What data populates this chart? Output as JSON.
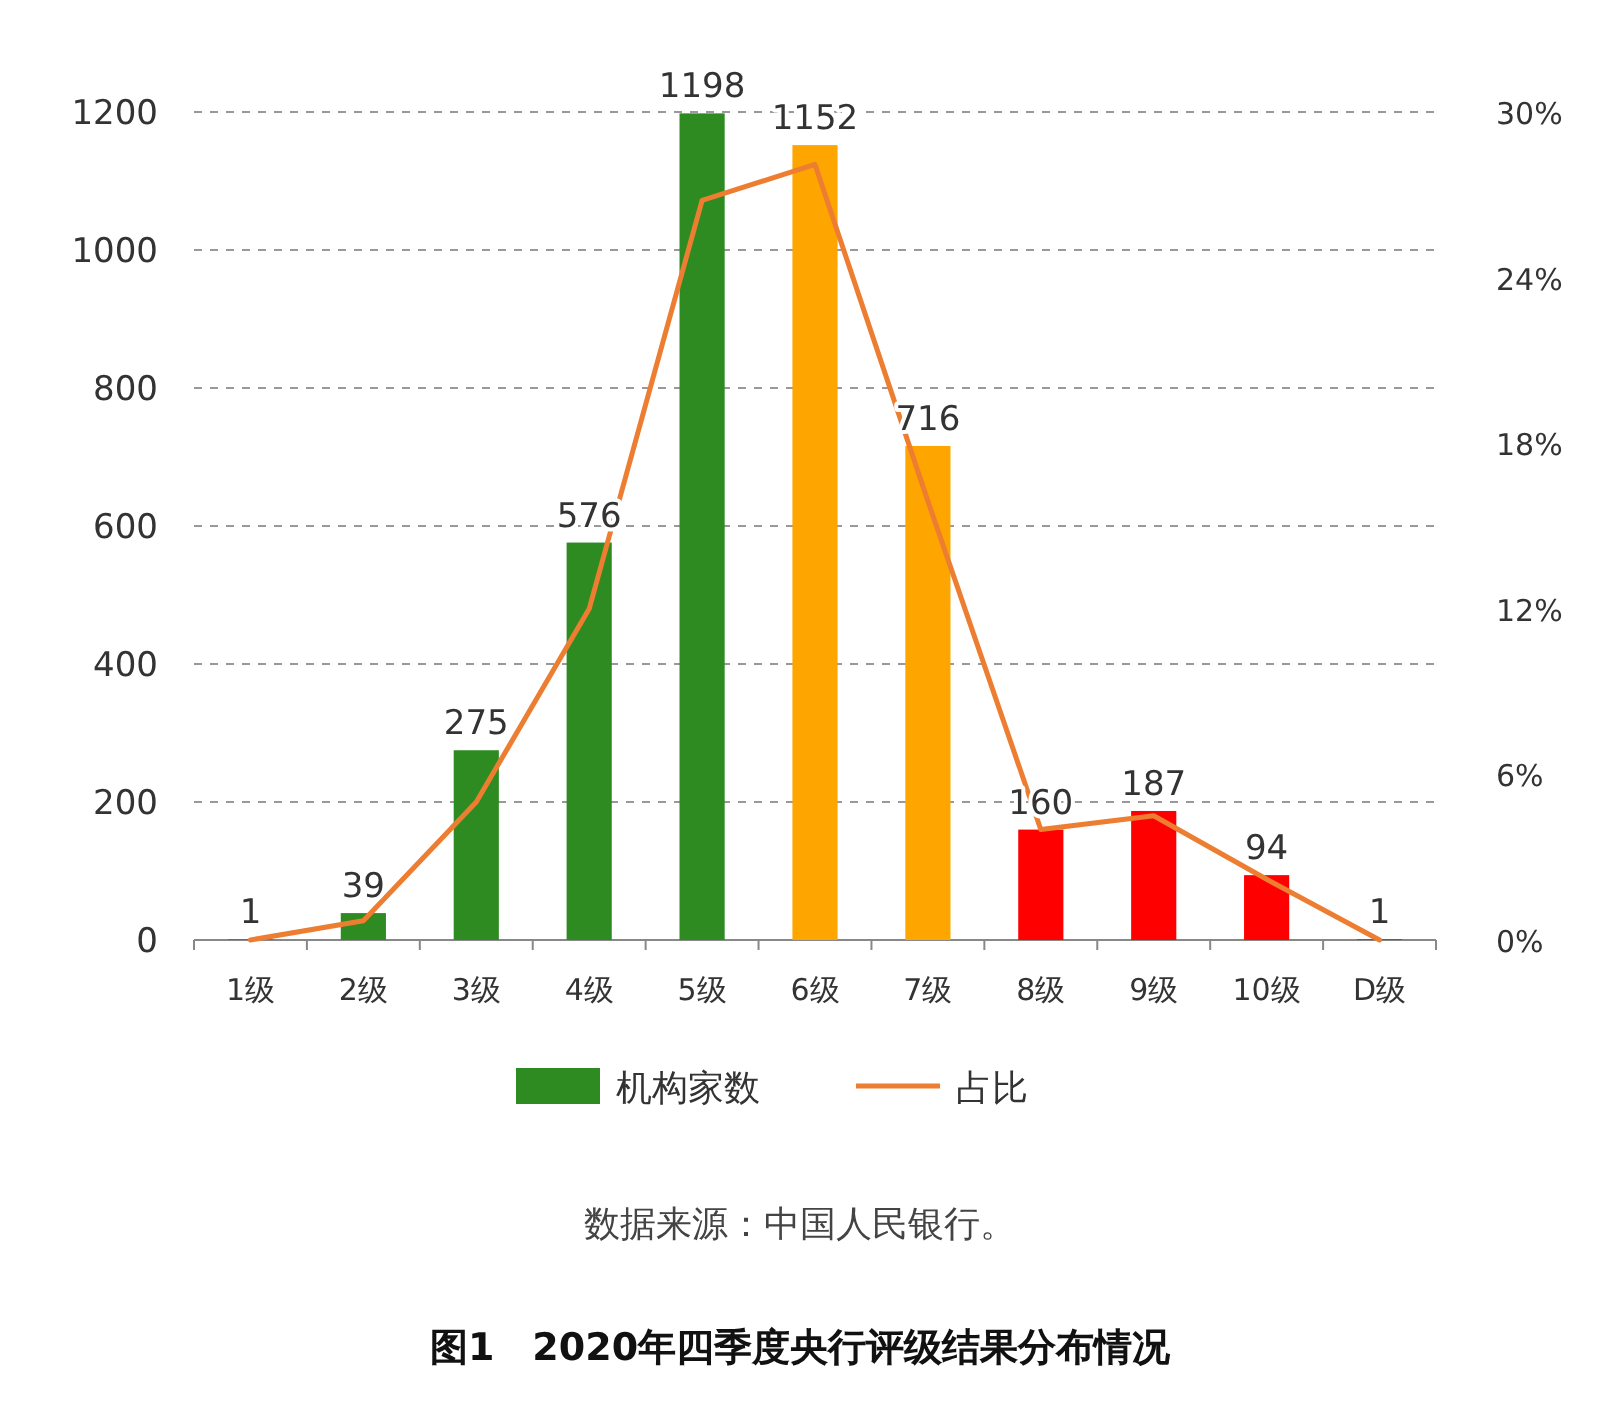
{
  "chart_data": {
    "type": "bar",
    "title": "图1　2020年四季度央行评级结果分布情况",
    "annotations": [
      "数据来源：中国人民银行。"
    ],
    "categories": [
      "1级",
      "2级",
      "3级",
      "4级",
      "5级",
      "6级",
      "7级",
      "8级",
      "9级",
      "10级",
      "D级"
    ],
    "series": [
      {
        "name": "机构家数",
        "color": "#2e8b22",
        "colors": [
          "#2e8b22",
          "#2e8b22",
          "#2e8b22",
          "#2e8b22",
          "#2e8b22",
          "#ffa500",
          "#ffa500",
          "#ff0000",
          "#ff0000",
          "#ff0000",
          "#ff0000"
        ],
        "values": [
          1,
          39,
          275,
          576,
          1198,
          1152,
          716,
          160,
          187,
          94,
          1
        ],
        "data_labels": true
      },
      {
        "name": "占比",
        "type": "line",
        "axis": "y2",
        "color": "#ed7d31",
        "values": [
          0,
          0.7,
          5,
          12,
          26.8,
          28.1,
          15.9,
          4,
          4.5,
          2.2,
          0
        ]
      }
    ],
    "ylim": [
      0,
      1200
    ],
    "yticks": [
      0,
      200,
      400,
      600,
      800,
      1000,
      1200
    ],
    "y2lim": [
      0,
      30
    ],
    "y2ticks": [
      {
        "value": 0,
        "label": "0%"
      },
      {
        "value": 6,
        "label": "6%"
      },
      {
        "value": 12,
        "label": "12%"
      },
      {
        "value": 18,
        "label": "18%"
      },
      {
        "value": 24,
        "label": "24%"
      },
      {
        "value": 30,
        "label": "30%"
      }
    ],
    "grid": "y",
    "legend": "bottom",
    "marker": "none",
    "line_style": "solid"
  }
}
